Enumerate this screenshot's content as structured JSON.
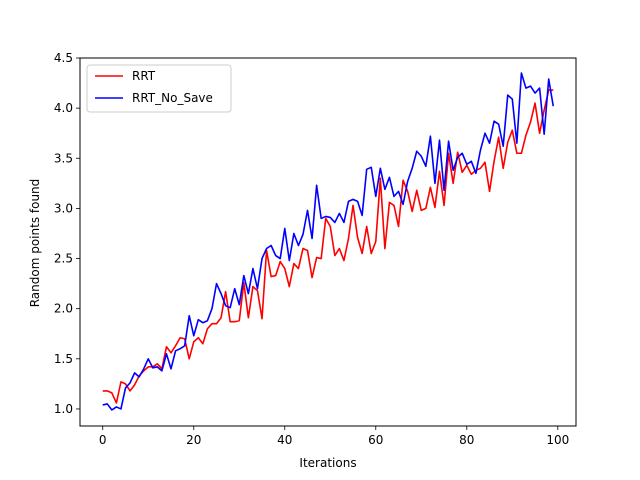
{
  "chart_data": {
    "type": "line",
    "title": "",
    "xlabel": "Iterations",
    "ylabel": "Random points found",
    "xlim": [
      -5,
      104
    ],
    "ylim": [
      0.83,
      4.5
    ],
    "xticks": [
      0,
      20,
      40,
      60,
      80,
      100
    ],
    "yticks": [
      1.0,
      1.5,
      2.0,
      2.5,
      3.0,
      3.5,
      4.0,
      4.5
    ],
    "grid": false,
    "legend_position": "top-left",
    "x": [
      0,
      1,
      2,
      3,
      4,
      5,
      6,
      7,
      8,
      9,
      10,
      11,
      12,
      13,
      14,
      15,
      16,
      17,
      18,
      19,
      20,
      21,
      22,
      23,
      24,
      25,
      26,
      27,
      28,
      29,
      30,
      31,
      32,
      33,
      34,
      35,
      36,
      37,
      38,
      39,
      40,
      41,
      42,
      43,
      44,
      45,
      46,
      47,
      48,
      49,
      50,
      51,
      52,
      53,
      54,
      55,
      56,
      57,
      58,
      59,
      60,
      61,
      62,
      63,
      64,
      65,
      66,
      67,
      68,
      69,
      70,
      71,
      72,
      73,
      74,
      75,
      76,
      77,
      78,
      79,
      80,
      81,
      82,
      83,
      84,
      85,
      86,
      87,
      88,
      89,
      90,
      91,
      92,
      93,
      94,
      95,
      96,
      97,
      98,
      99
    ],
    "series": [
      {
        "name": "RRT",
        "color": "#ff0000",
        "values": [
          1.18,
          1.18,
          1.16,
          1.06,
          1.27,
          1.25,
          1.18,
          1.24,
          1.33,
          1.38,
          1.42,
          1.42,
          1.45,
          1.4,
          1.62,
          1.56,
          1.63,
          1.71,
          1.7,
          1.5,
          1.67,
          1.71,
          1.65,
          1.8,
          1.85,
          1.85,
          1.91,
          2.17,
          1.87,
          1.87,
          1.88,
          2.26,
          1.91,
          2.22,
          2.18,
          1.9,
          2.58,
          2.32,
          2.33,
          2.47,
          2.4,
          2.22,
          2.45,
          2.4,
          2.6,
          2.58,
          2.31,
          2.51,
          2.5,
          2.9,
          2.82,
          2.53,
          2.6,
          2.48,
          2.7,
          3.03,
          2.71,
          2.55,
          2.82,
          2.55,
          2.67,
          3.3,
          2.6,
          3.06,
          3.03,
          2.82,
          3.28,
          3.17,
          2.97,
          3.18,
          2.98,
          3.0,
          3.21,
          3.01,
          3.37,
          3.03,
          3.55,
          3.25,
          3.56,
          3.36,
          3.43,
          3.34,
          3.38,
          3.4,
          3.46,
          3.17,
          3.47,
          3.71,
          3.4,
          3.66,
          3.78,
          3.55,
          3.55,
          3.73,
          3.86,
          4.05,
          3.75,
          3.98,
          4.18,
          4.18
        ]
      },
      {
        "name": "RRT_No_Save",
        "color": "#0000ff",
        "values": [
          1.04,
          1.05,
          0.99,
          1.02,
          1.0,
          1.21,
          1.26,
          1.36,
          1.32,
          1.4,
          1.5,
          1.41,
          1.42,
          1.38,
          1.55,
          1.4,
          1.58,
          1.6,
          1.63,
          1.93,
          1.73,
          1.89,
          1.86,
          1.88,
          2.0,
          2.25,
          2.15,
          2.03,
          2.01,
          2.2,
          2.04,
          2.33,
          2.15,
          2.4,
          2.2,
          2.5,
          2.6,
          2.63,
          2.53,
          2.5,
          2.8,
          2.48,
          2.75,
          2.63,
          2.74,
          2.98,
          2.7,
          3.23,
          2.9,
          2.92,
          2.91,
          2.86,
          2.95,
          2.86,
          3.07,
          3.09,
          3.07,
          2.93,
          3.39,
          3.41,
          3.12,
          3.4,
          3.19,
          3.31,
          3.12,
          3.17,
          3.04,
          3.27,
          3.4,
          3.57,
          3.52,
          3.42,
          3.72,
          3.25,
          3.68,
          3.18,
          3.67,
          3.38,
          3.51,
          3.55,
          3.44,
          3.47,
          3.35,
          3.58,
          3.75,
          3.65,
          3.87,
          3.84,
          3.62,
          4.13,
          4.09,
          3.65,
          4.35,
          4.2,
          4.22,
          4.15,
          4.2,
          3.74,
          4.29,
          4.02
        ]
      }
    ]
  }
}
